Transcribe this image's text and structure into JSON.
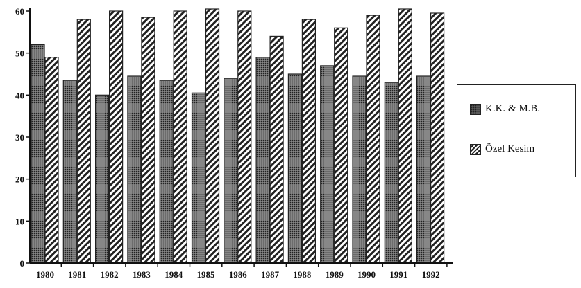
{
  "chart_data": {
    "type": "bar",
    "title": "",
    "xlabel": "",
    "ylabel": "",
    "categories": [
      "1980",
      "1981",
      "1982",
      "1983",
      "1984",
      "1985",
      "1986",
      "1987",
      "1988",
      "1989",
      "1990",
      "1991",
      "1992"
    ],
    "series": [
      {
        "name": "K.K. & M.B.",
        "values": [
          52,
          43.5,
          40,
          44.5,
          43.5,
          40.5,
          44,
          49,
          45,
          47,
          44.5,
          43,
          44.5
        ],
        "pattern": "dots",
        "color": "#666666"
      },
      {
        "name": "Özel Kesim",
        "values": [
          49,
          58,
          60,
          58.5,
          60,
          60.5,
          60,
          54,
          58,
          56,
          59,
          60.5,
          59.5
        ],
        "pattern": "hatch",
        "color": "#222222"
      }
    ],
    "yticks": [
      0,
      10,
      20,
      30,
      40,
      50,
      60
    ],
    "ylim": [
      0,
      60
    ],
    "grid": false,
    "legend_position": "right"
  },
  "legend": {
    "items": [
      {
        "label": "K.K. & M.B."
      },
      {
        "label": "Özel Kesim"
      }
    ]
  }
}
